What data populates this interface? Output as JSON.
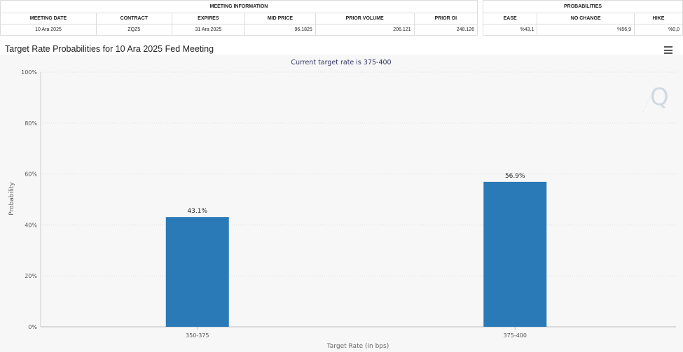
{
  "meeting_info": {
    "section_title": "MEETING INFORMATION",
    "headers": [
      "MEETING DATE",
      "CONTRACT",
      "EXPIRES",
      "MID PRICE",
      "PRIOR VOLUME",
      "PRIOR OI"
    ],
    "row": [
      "10 Ara 2025",
      "ZQZ5",
      "31 Ara 2025",
      "96.1825",
      "206.121",
      "248.126"
    ]
  },
  "probabilities": {
    "section_title": "PROBABILITIES",
    "headers": [
      "EASE",
      "NO CHANGE",
      "HIKE"
    ],
    "row": [
      "%43,1",
      "%56,9",
      "%0,0"
    ]
  },
  "chart_title": "Target Rate Probabilities for 10 Ara 2025 Fed Meeting",
  "menu_icon": "hamburger-menu-icon",
  "watermark_icon": "q-logo-icon",
  "colors": {
    "bar": "#2a7ab7",
    "grid": "#dddddd",
    "subtitle": "#333366"
  },
  "chart_data": {
    "type": "bar",
    "subtitle": "Current target rate is 375-400",
    "categories": [
      "350-375",
      "375-400"
    ],
    "values": [
      43.1,
      56.9
    ],
    "data_labels": [
      "43.1%",
      "56.9%"
    ],
    "xlabel": "Target Rate (in bps)",
    "ylabel": "Probability",
    "ylim": [
      0,
      100
    ],
    "yticks": [
      "0%",
      "20%",
      "40%",
      "60%",
      "80%",
      "100%"
    ],
    "grid": true
  }
}
